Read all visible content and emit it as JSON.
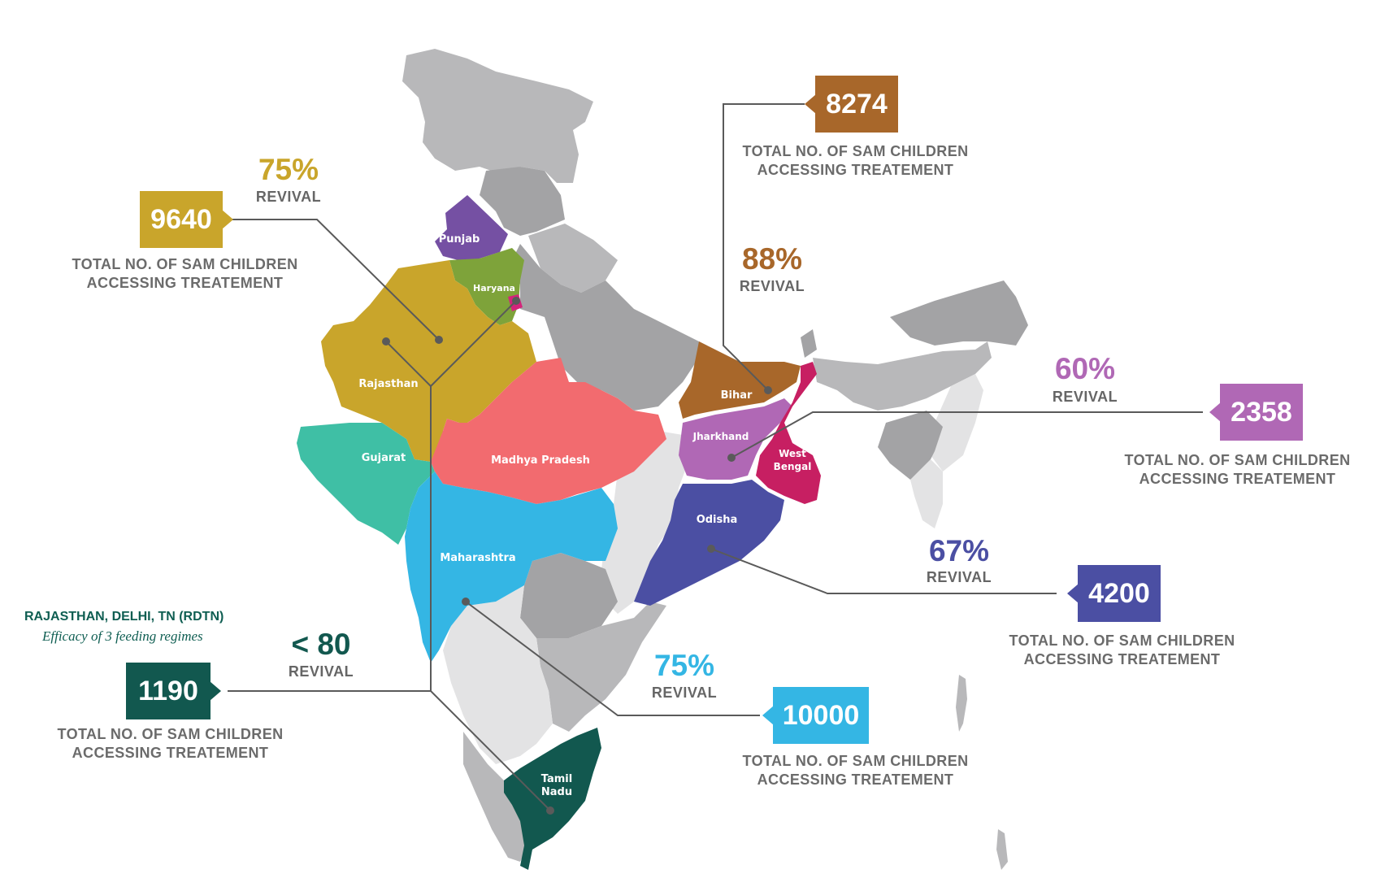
{
  "colors": {
    "grey_dark": "#a3a3a5",
    "grey_mid": "#b8b8ba",
    "grey_light": "#e3e3e4",
    "punjab": "#7550a3",
    "haryana": "#7ea33a",
    "delhi": "#d4247a",
    "rajasthan": "#c9a52b",
    "gujarat": "#3fbfa5",
    "madhya_pradesh": "#f26b6f",
    "maharashtra": "#34b6e4",
    "bihar": "#a8672a",
    "jharkhand": "#b068b5",
    "west_bengal": "#c71f62",
    "odisha": "#4b4fa3",
    "tamil_nadu": "#12584f",
    "connector": "#5a5a5a"
  },
  "map": {
    "labels": {
      "punjab": "Punjab",
      "haryana": "Haryana",
      "rajasthan": "Rajasthan",
      "gujarat": "Gujarat",
      "madhya_pradesh": "Madhya Pradesh",
      "maharashtra": "Maharashtra",
      "bihar": "Bihar",
      "jharkhand": "Jharkhand",
      "west_bengal_1": "West",
      "west_bengal_2": "Bengal",
      "odisha": "Odisha",
      "tamil_nadu_1": "Tamil",
      "tamil_nadu_2": "Nadu"
    }
  },
  "callouts": {
    "rajasthan": {
      "count": "9640",
      "percent": "75%",
      "revival": "REVIVAL",
      "caption_line1": "TOTAL NO. OF SAM CHILDREN",
      "caption_line2": "ACCESSING  TREATEMENT"
    },
    "bihar": {
      "count": "8274",
      "percent": "88%",
      "revival": "REVIVAL",
      "caption_line1": "TOTAL NO. OF SAM CHILDREN",
      "caption_line2": "ACCESSING  TREATEMENT"
    },
    "jharkhand": {
      "count": "2358",
      "percent": "60%",
      "revival": "REVIVAL",
      "caption_line1": "TOTAL NO. OF SAM CHILDREN",
      "caption_line2": "ACCESSING  TREATEMENT"
    },
    "odisha": {
      "count": "4200",
      "percent": "67%",
      "revival": "REVIVAL",
      "caption_line1": "TOTAL NO. OF SAM CHILDREN",
      "caption_line2": "ACCESSING  TREATEMENT"
    },
    "maharashtra": {
      "count": "10000",
      "percent": "75%",
      "revival": "REVIVAL",
      "caption_line1": "TOTAL NO. OF SAM CHILDREN",
      "caption_line2": "ACCESSING  TREATEMENT"
    },
    "rdtn": {
      "title": "RAJASTHAN, DELHI, TN (RDTN)",
      "subtitle": "Efficacy of 3 feeding regimes",
      "count": "1190",
      "percent": "< 80",
      "revival": "REVIVAL",
      "caption_line1": "TOTAL NO. OF SAM CHILDREN",
      "caption_line2": "ACCESSING  TREATEMENT"
    }
  }
}
